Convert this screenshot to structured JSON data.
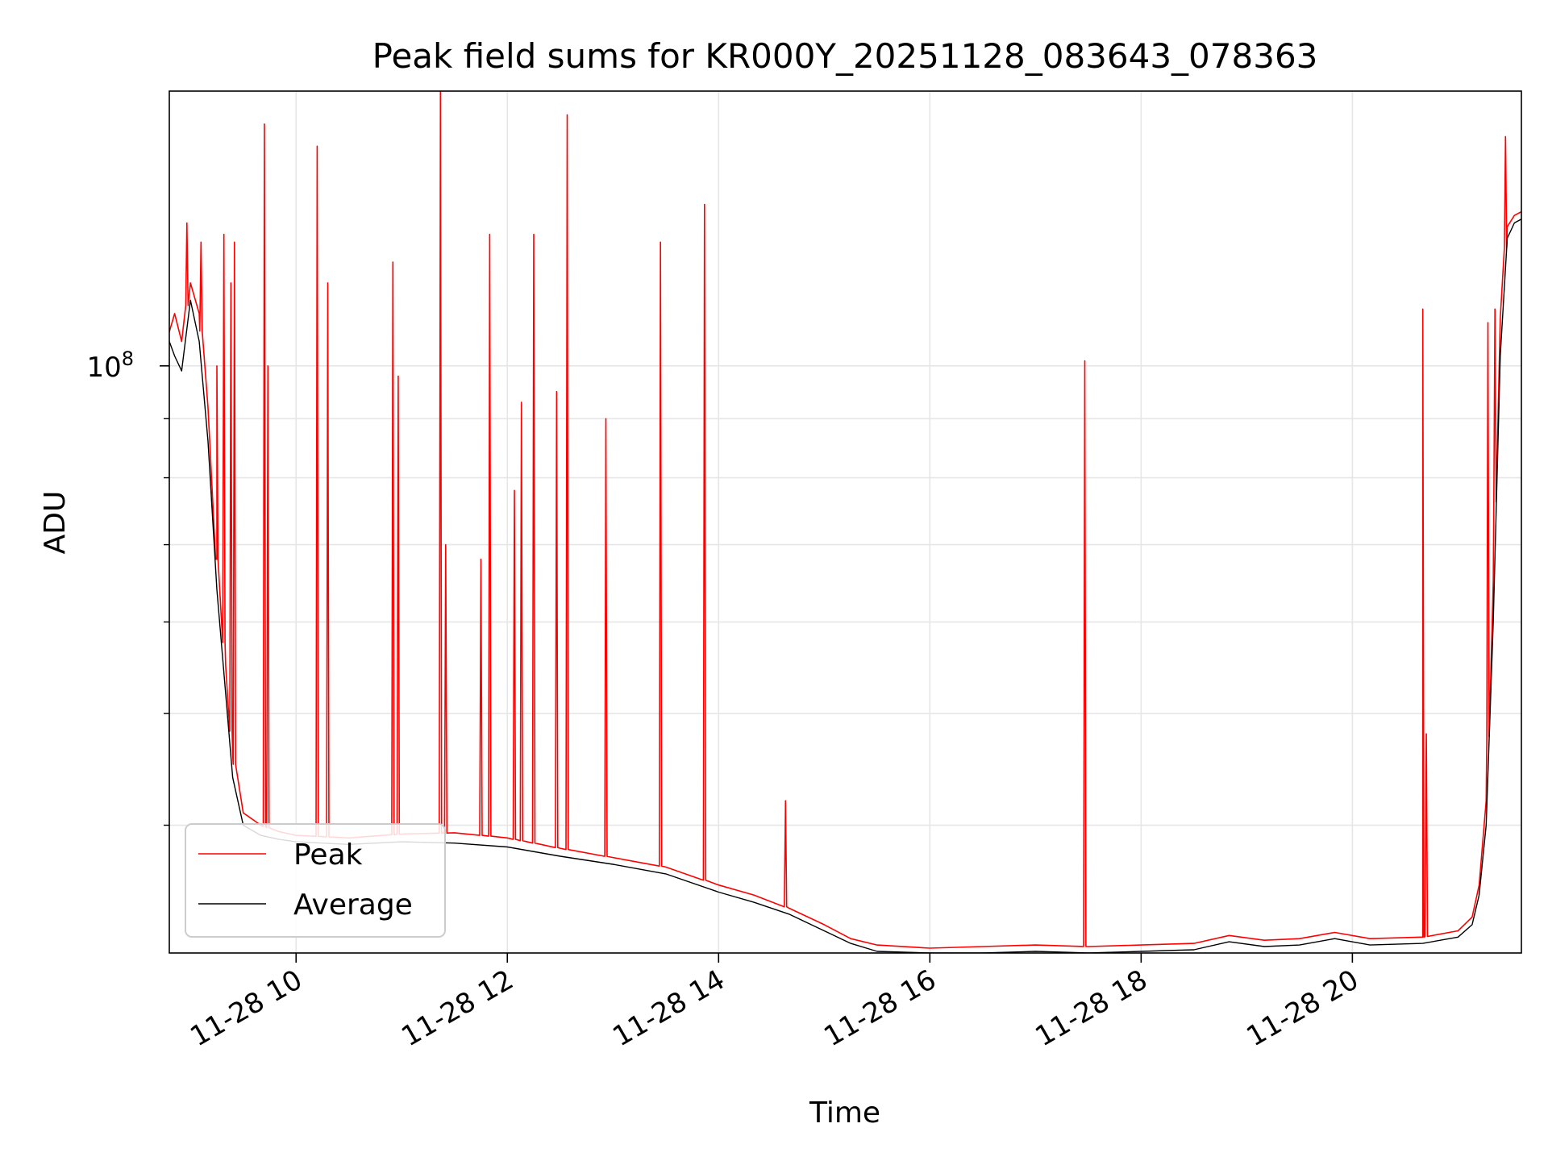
{
  "chart_data": {
    "type": "line",
    "title": "Peak field sums for KR000Y_20251128_083643_078363",
    "xlabel": "Time",
    "ylabel": "ADU",
    "y_scale": "log",
    "x_range": [
      "2025-11-28 08:48",
      "2025-11-28 21:36"
    ],
    "ylim": [
      31000000,
      173000000
    ],
    "x_ticks": [
      {
        "time": "2025-11-28 10:00",
        "label": "11-28 10"
      },
      {
        "time": "2025-11-28 12:00",
        "label": "11-28 12"
      },
      {
        "time": "2025-11-28 14:00",
        "label": "11-28 14"
      },
      {
        "time": "2025-11-28 16:00",
        "label": "11-28 16"
      },
      {
        "time": "2025-11-28 18:00",
        "label": "11-28 18"
      },
      {
        "time": "2025-11-28 20:00",
        "label": "11-28 20"
      }
    ],
    "y_major_ticks": [
      {
        "value": 100000000,
        "label": "10",
        "exponent": "8"
      }
    ],
    "y_minor_ticks": [
      40000000,
      50000000,
      60000000,
      70000000,
      80000000,
      90000000
    ],
    "grid": true,
    "legend_position": "lower-left",
    "series": [
      {
        "name": "Peak",
        "color": "#ff0000",
        "points": [
          [
            "2025-11-28 08:48",
            107000000
          ],
          [
            "2025-11-28 08:51",
            111000000
          ],
          [
            "2025-11-28 08:55",
            105000000
          ],
          [
            "2025-11-28 09:00",
            118000000
          ],
          [
            "2025-11-28 09:05",
            111000000
          ],
          [
            "2025-11-28 09:10",
            92000000
          ],
          [
            "2025-11-28 09:15",
            68000000
          ],
          [
            "2025-11-28 09:20",
            55000000
          ],
          [
            "2025-11-28 09:24",
            46000000
          ],
          [
            "2025-11-28 09:30",
            41000000
          ],
          [
            "2025-11-28 09:40",
            40000000
          ],
          [
            "2025-11-28 09:50",
            39500000
          ],
          [
            "2025-11-28 10:00",
            39200000
          ],
          [
            "2025-11-28 10:30",
            39000000
          ],
          [
            "2025-11-28 11:00",
            39300000
          ],
          [
            "2025-11-28 11:30",
            39400000
          ],
          [
            "2025-11-28 12:00",
            39000000
          ],
          [
            "2025-11-28 12:30",
            38200000
          ],
          [
            "2025-11-28 13:00",
            37500000
          ],
          [
            "2025-11-28 13:30",
            36800000
          ],
          [
            "2025-11-28 14:00",
            35500000
          ],
          [
            "2025-11-28 14:20",
            34800000
          ],
          [
            "2025-11-28 14:40",
            33900000
          ],
          [
            "2025-11-28 15:00",
            32800000
          ],
          [
            "2025-11-28 15:15",
            31900000
          ],
          [
            "2025-11-28 15:30",
            31500000
          ],
          [
            "2025-11-28 16:00",
            31300000
          ],
          [
            "2025-11-28 16:30",
            31400000
          ],
          [
            "2025-11-28 17:00",
            31500000
          ],
          [
            "2025-11-28 17:30",
            31400000
          ],
          [
            "2025-11-28 18:00",
            31500000
          ],
          [
            "2025-11-28 18:30",
            31600000
          ],
          [
            "2025-11-28 18:50",
            32100000
          ],
          [
            "2025-11-28 19:10",
            31800000
          ],
          [
            "2025-11-28 19:30",
            31900000
          ],
          [
            "2025-11-28 19:50",
            32300000
          ],
          [
            "2025-11-28 20:10",
            31900000
          ],
          [
            "2025-11-28 20:40",
            32000000
          ],
          [
            "2025-11-28 21:00",
            32400000
          ],
          [
            "2025-11-28 21:08",
            33300000
          ],
          [
            "2025-11-28 21:12",
            35500000
          ],
          [
            "2025-11-28 21:16",
            42000000
          ],
          [
            "2025-11-28 21:20",
            65000000
          ],
          [
            "2025-11-28 21:24",
            110000000
          ],
          [
            "2025-11-28 21:28",
            132000000
          ],
          [
            "2025-11-28 21:32",
            135000000
          ],
          [
            "2025-11-28 21:36",
            136000000
          ]
        ],
        "spikes": [
          [
            "2025-11-28 08:58",
            133000000
          ],
          [
            "2025-11-28 09:06",
            128000000
          ],
          [
            "2025-11-28 09:15",
            100000000
          ],
          [
            "2025-11-28 09:19",
            130000000
          ],
          [
            "2025-11-28 09:23",
            118000000
          ],
          [
            "2025-11-28 09:25",
            128000000
          ],
          [
            "2025-11-28 09:42",
            162000000
          ],
          [
            "2025-11-28 09:44",
            100000000
          ],
          [
            "2025-11-28 10:12",
            155000000
          ],
          [
            "2025-11-28 10:18",
            118000000
          ],
          [
            "2025-11-28 10:55",
            123000000
          ],
          [
            "2025-11-28 10:58",
            98000000
          ],
          [
            "2025-11-28 11:22",
            173000000
          ],
          [
            "2025-11-28 11:25",
            70000000
          ],
          [
            "2025-11-28 11:45",
            68000000
          ],
          [
            "2025-11-28 11:50",
            130000000
          ],
          [
            "2025-11-28 12:04",
            78000000
          ],
          [
            "2025-11-28 12:08",
            93000000
          ],
          [
            "2025-11-28 12:15",
            130000000
          ],
          [
            "2025-11-28 12:28",
            95000000
          ],
          [
            "2025-11-28 12:34",
            165000000
          ],
          [
            "2025-11-28 12:56",
            90000000
          ],
          [
            "2025-11-28 13:27",
            128000000
          ],
          [
            "2025-11-28 13:52",
            138000000
          ],
          [
            "2025-11-28 14:38",
            42000000
          ],
          [
            "2025-11-28 17:28",
            101000000
          ],
          [
            "2025-11-28 20:40",
            112000000
          ],
          [
            "2025-11-28 20:42",
            48000000
          ],
          [
            "2025-11-28 21:17",
            109000000
          ],
          [
            "2025-11-28 21:21",
            112000000
          ],
          [
            "2025-11-28 21:27",
            158000000
          ]
        ]
      },
      {
        "name": "Average",
        "color": "#000000",
        "points": [
          [
            "2025-11-28 08:48",
            105000000
          ],
          [
            "2025-11-28 08:51",
            102000000
          ],
          [
            "2025-11-28 08:55",
            99000000
          ],
          [
            "2025-11-28 09:00",
            114000000
          ],
          [
            "2025-11-28 09:05",
            105000000
          ],
          [
            "2025-11-28 09:10",
            86000000
          ],
          [
            "2025-11-28 09:15",
            64000000
          ],
          [
            "2025-11-28 09:20",
            52000000
          ],
          [
            "2025-11-28 09:24",
            44000000
          ],
          [
            "2025-11-28 09:30",
            40000000
          ],
          [
            "2025-11-28 09:40",
            39200000
          ],
          [
            "2025-11-28 09:50",
            38900000
          ],
          [
            "2025-11-28 10:00",
            38700000
          ],
          [
            "2025-11-28 10:30",
            38500000
          ],
          [
            "2025-11-28 11:00",
            38700000
          ],
          [
            "2025-11-28 11:30",
            38600000
          ],
          [
            "2025-11-28 12:00",
            38300000
          ],
          [
            "2025-11-28 12:30",
            37600000
          ],
          [
            "2025-11-28 13:00",
            37000000
          ],
          [
            "2025-11-28 13:30",
            36300000
          ],
          [
            "2025-11-28 14:00",
            35000000
          ],
          [
            "2025-11-28 14:20",
            34300000
          ],
          [
            "2025-11-28 14:40",
            33500000
          ],
          [
            "2025-11-28 15:00",
            32400000
          ],
          [
            "2025-11-28 15:15",
            31600000
          ],
          [
            "2025-11-28 15:30",
            31100000
          ],
          [
            "2025-11-28 16:00",
            31000000
          ],
          [
            "2025-11-28 16:30",
            31000000
          ],
          [
            "2025-11-28 17:00",
            31100000
          ],
          [
            "2025-11-28 17:30",
            31000000
          ],
          [
            "2025-11-28 18:00",
            31100000
          ],
          [
            "2025-11-28 18:30",
            31200000
          ],
          [
            "2025-11-28 18:50",
            31700000
          ],
          [
            "2025-11-28 19:10",
            31400000
          ],
          [
            "2025-11-28 19:30",
            31500000
          ],
          [
            "2025-11-28 19:50",
            31900000
          ],
          [
            "2025-11-28 20:10",
            31500000
          ],
          [
            "2025-11-28 20:40",
            31600000
          ],
          [
            "2025-11-28 21:00",
            32000000
          ],
          [
            "2025-11-28 21:08",
            32800000
          ],
          [
            "2025-11-28 21:12",
            34800000
          ],
          [
            "2025-11-28 21:16",
            40000000
          ],
          [
            "2025-11-28 21:20",
            60000000
          ],
          [
            "2025-11-28 21:24",
            102000000
          ],
          [
            "2025-11-28 21:28",
            129000000
          ],
          [
            "2025-11-28 21:32",
            133000000
          ],
          [
            "2025-11-28 21:36",
            134000000
          ]
        ]
      }
    ]
  }
}
